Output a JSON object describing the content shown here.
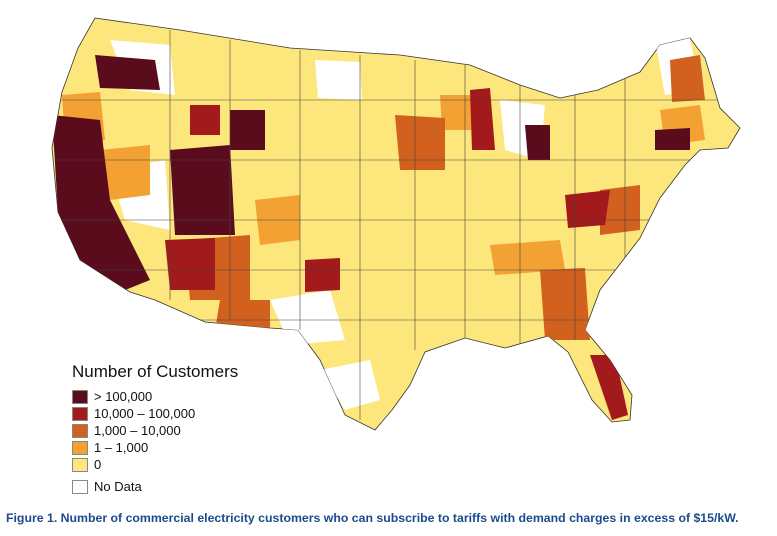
{
  "legend": {
    "title": "Number of Customers",
    "items": [
      {
        "label": "> 100,000",
        "color": "#5a0c1c"
      },
      {
        "label": "10,000 – 100,000",
        "color": "#a31a1c"
      },
      {
        "label": "1,000 – 10,000",
        "color": "#d2611f"
      },
      {
        "label": "1 – 1,000",
        "color": "#f3a133"
      },
      {
        "label": "0",
        "color": "#fde67c"
      },
      {
        "label": "No Data",
        "color": "#ffffff"
      }
    ]
  },
  "caption": "Figure 1. Number of commercial electricity customers who can subscribe to tariffs with demand charges in excess of $15/kW."
}
